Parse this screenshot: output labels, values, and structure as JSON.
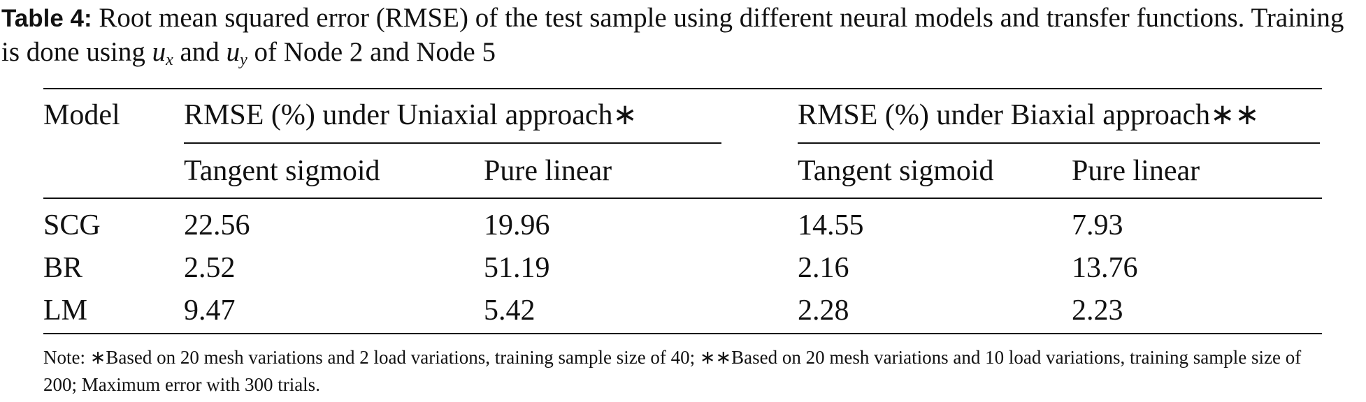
{
  "caption": {
    "label": "Table 4:",
    "text_before": "Root mean squared error (RMSE) of the test sample using different neural models and transfer functions. Training is done using ",
    "var1": "u",
    "sub1": "x",
    "mid": " and ",
    "var2": "u",
    "sub2": "y",
    "text_after": " of Node 2 and Node 5"
  },
  "table": {
    "header": {
      "model": "Model",
      "groups": [
        "RMSE (%) under Uniaxial approach∗",
        "RMSE (%) under Biaxial approach∗∗"
      ],
      "subheaders": [
        "Tangent sigmoid",
        "Pure linear",
        "Tangent sigmoid",
        "Pure linear"
      ]
    },
    "rows": [
      [
        "SCG",
        "22.56",
        "19.96",
        "14.55",
        "7.93"
      ],
      [
        "BR",
        "2.52",
        "51.19",
        "2.16",
        "13.76"
      ],
      [
        "LM",
        "9.47",
        "5.42",
        "2.28",
        "2.23"
      ]
    ]
  },
  "note": "Note: ∗Based on 20 mesh variations and 2 load variations, training sample size of 40; ∗∗Based on 20 mesh variations and 10 load variations, training sample size of 200; Maximum error with 300 trials."
}
